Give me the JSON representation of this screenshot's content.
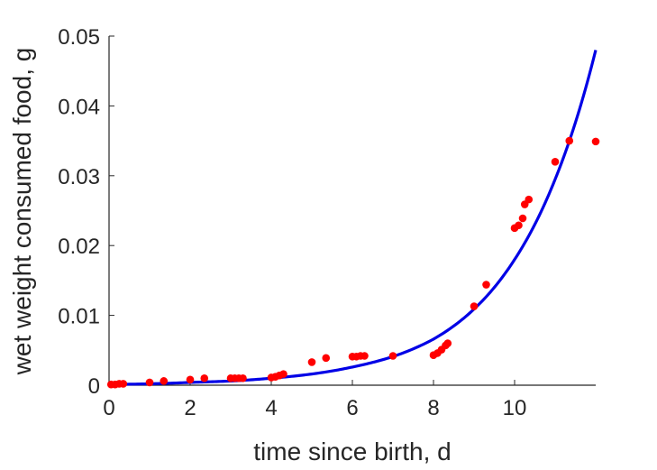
{
  "chart_data": {
    "type": "scatter",
    "xlabel": "time since birth, d",
    "ylabel": "wet weight consumed food, g",
    "xlim": [
      0,
      12
    ],
    "ylim": [
      0,
      0.05
    ],
    "xticks": [
      0,
      2,
      4,
      6,
      8,
      10
    ],
    "xtick_labels": [
      "0",
      "2",
      "4",
      "6",
      "8",
      "10"
    ],
    "yticks": [
      0,
      0.01,
      0.02,
      0.03,
      0.04,
      0.05
    ],
    "ytick_labels": [
      "0",
      "0.01",
      "0.02",
      "0.03",
      "0.04",
      "0.05"
    ],
    "grid": false,
    "legend": "none",
    "colors": {
      "points": "#ff0000",
      "curve": "#0000e6",
      "axis": "#262626"
    },
    "points": [
      {
        "x": 0.05,
        "y": 0.0001
      },
      {
        "x": 0.15,
        "y": 0.0001
      },
      {
        "x": 0.25,
        "y": 0.0002
      },
      {
        "x": 0.35,
        "y": 0.0002
      },
      {
        "x": 1.0,
        "y": 0.0004
      },
      {
        "x": 1.35,
        "y": 0.0006
      },
      {
        "x": 2.0,
        "y": 0.0008
      },
      {
        "x": 2.35,
        "y": 0.001
      },
      {
        "x": 3.0,
        "y": 0.001
      },
      {
        "x": 3.1,
        "y": 0.001
      },
      {
        "x": 3.2,
        "y": 0.001
      },
      {
        "x": 3.3,
        "y": 0.001
      },
      {
        "x": 4.0,
        "y": 0.0011
      },
      {
        "x": 4.1,
        "y": 0.0012
      },
      {
        "x": 4.2,
        "y": 0.0014
      },
      {
        "x": 4.3,
        "y": 0.0016
      },
      {
        "x": 5.0,
        "y": 0.0033
      },
      {
        "x": 5.35,
        "y": 0.0039
      },
      {
        "x": 6.0,
        "y": 0.0041
      },
      {
        "x": 6.1,
        "y": 0.0041
      },
      {
        "x": 6.2,
        "y": 0.0042
      },
      {
        "x": 6.3,
        "y": 0.0042
      },
      {
        "x": 7.0,
        "y": 0.0042
      },
      {
        "x": 8.0,
        "y": 0.0043
      },
      {
        "x": 8.1,
        "y": 0.0046
      },
      {
        "x": 8.2,
        "y": 0.0051
      },
      {
        "x": 8.3,
        "y": 0.0057
      },
      {
        "x": 8.35,
        "y": 0.006
      },
      {
        "x": 9.0,
        "y": 0.0113
      },
      {
        "x": 9.3,
        "y": 0.0144
      },
      {
        "x": 10.0,
        "y": 0.0225
      },
      {
        "x": 10.1,
        "y": 0.0229
      },
      {
        "x": 10.2,
        "y": 0.0239
      },
      {
        "x": 10.25,
        "y": 0.0259
      },
      {
        "x": 10.35,
        "y": 0.0266
      },
      {
        "x": 11.0,
        "y": 0.032
      },
      {
        "x": 11.35,
        "y": 0.035
      },
      {
        "x": 12.0,
        "y": 0.0349
      }
    ],
    "curve": {
      "x": [
        0,
        1,
        2,
        3,
        4,
        5,
        6,
        7,
        8,
        9,
        10,
        11,
        12
      ],
      "y": [
        0.0001,
        0.0002,
        0.0004,
        0.0006,
        0.001,
        0.0016,
        0.0026,
        0.0041,
        0.0066,
        0.0109,
        0.018,
        0.0295,
        0.048
      ]
    }
  }
}
